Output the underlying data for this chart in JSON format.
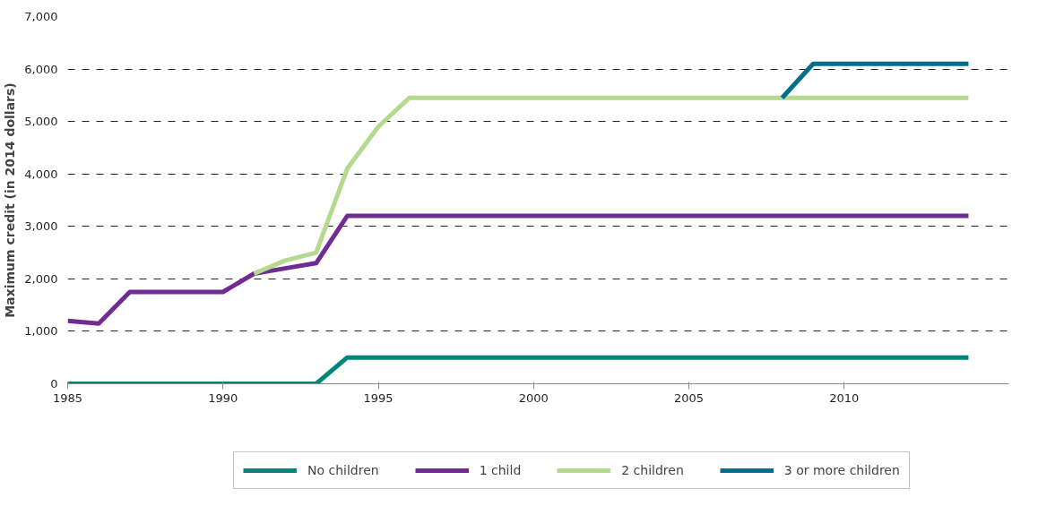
{
  "chart_data": {
    "type": "line",
    "ylabel": "Maximum credit (in 2014 dollars)",
    "x": [
      1985,
      1986,
      1987,
      1988,
      1989,
      1990,
      1991,
      1992,
      1993,
      1994,
      1995,
      1996,
      1997,
      1998,
      1999,
      2000,
      2001,
      2002,
      2003,
      2004,
      2005,
      2006,
      2007,
      2008,
      2009,
      2010,
      2011,
      2012,
      2013,
      2014
    ],
    "series": [
      {
        "name": "No children",
        "color": "#00857a",
        "values": [
          0,
          0,
          0,
          0,
          0,
          0,
          0,
          0,
          0,
          500,
          500,
          500,
          500,
          500,
          500,
          500,
          500,
          500,
          500,
          500,
          500,
          500,
          500,
          500,
          500,
          500,
          500,
          500,
          500,
          500
        ]
      },
      {
        "name": "1 child",
        "color": "#6f2c91",
        "values": [
          1200,
          1150,
          1750,
          1750,
          1750,
          1750,
          2100,
          2200,
          2300,
          3200,
          3200,
          3200,
          3200,
          3200,
          3200,
          3200,
          3200,
          3200,
          3200,
          3200,
          3200,
          3200,
          3200,
          3200,
          3200,
          3200,
          3200,
          3200,
          3200,
          3200
        ]
      },
      {
        "name": "2 children",
        "color": "#b5d98f",
        "values": [
          null,
          null,
          null,
          null,
          null,
          null,
          2100,
          2350,
          2500,
          4100,
          4900,
          5450,
          5450,
          5450,
          5450,
          5450,
          5450,
          5450,
          5450,
          5450,
          5450,
          5450,
          5450,
          5450,
          5450,
          5450,
          5450,
          5450,
          5450,
          5450
        ]
      },
      {
        "name": "3 or more children",
        "color": "#006e8c",
        "values": [
          null,
          null,
          null,
          null,
          null,
          null,
          null,
          null,
          null,
          null,
          null,
          null,
          null,
          null,
          null,
          null,
          null,
          null,
          null,
          null,
          null,
          null,
          null,
          5450,
          6100,
          6100,
          6100,
          6100,
          6100,
          6100
        ]
      }
    ],
    "xlim": [
      1985,
      2015.3
    ],
    "xticks": [
      1985,
      1990,
      1995,
      2000,
      2005,
      2010
    ],
    "ylim": [
      0,
      7000
    ],
    "yticks": [
      {
        "value": 0,
        "label": "0"
      },
      {
        "value": 1000,
        "label": "1,000"
      },
      {
        "value": 2000,
        "label": "2,000"
      },
      {
        "value": 3000,
        "label": "3,000"
      },
      {
        "value": 4000,
        "label": "4,000"
      },
      {
        "value": 5000,
        "label": "5,000"
      },
      {
        "value": 6000,
        "label": "6,000"
      },
      {
        "value": 7000,
        "label": "7,000"
      }
    ],
    "grid": "y",
    "legend": "bottom",
    "line_style": "solid"
  }
}
